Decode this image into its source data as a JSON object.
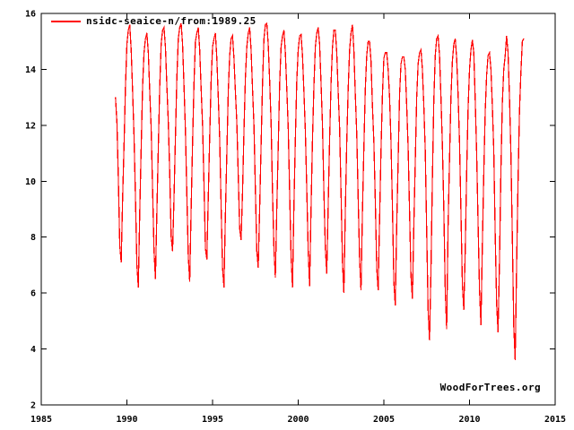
{
  "chart_data": {
    "type": "line",
    "title": "",
    "xlabel": "",
    "ylabel": "",
    "xlim": [
      1985,
      2015
    ],
    "ylim": [
      2,
      16
    ],
    "x_ticks": [
      1985,
      1990,
      1995,
      2000,
      2005,
      2010,
      2015
    ],
    "y_ticks": [
      2,
      4,
      6,
      8,
      10,
      12,
      14,
      16
    ],
    "grid": false,
    "legend_position": "top-left",
    "watermark": "WoodForTrees.org",
    "series": [
      {
        "name": "nsidc-seaice-n/from:1989.25",
        "color": "#ff0000",
        "start_time": 1989.3333,
        "step_years": 0.0833333,
        "values": [
          13.0,
          12.1,
          10.1,
          7.7,
          7.1,
          9.4,
          11.3,
          13.4,
          14.9,
          15.4,
          15.6,
          14.7,
          13.2,
          11.6,
          9.4,
          7.0,
          6.2,
          8.9,
          11.2,
          13.4,
          14.6,
          15.1,
          15.3,
          14.6,
          13.2,
          11.9,
          9.7,
          7.5,
          6.5,
          8.9,
          11.2,
          13.4,
          14.9,
          15.4,
          15.5,
          14.8,
          13.4,
          12.1,
          10.3,
          8.0,
          7.5,
          9.4,
          11.6,
          13.7,
          15.1,
          15.5,
          15.65,
          14.9,
          13.4,
          11.8,
          9.5,
          7.3,
          6.4,
          9.0,
          11.4,
          13.5,
          15.0,
          15.3,
          15.5,
          14.7,
          13.3,
          12.0,
          9.9,
          7.6,
          7.2,
          9.4,
          11.6,
          13.6,
          14.8,
          15.1,
          15.3,
          14.4,
          13.0,
          11.5,
          9.1,
          6.9,
          6.2,
          8.8,
          11.0,
          13.2,
          14.5,
          15.1,
          15.2,
          14.4,
          13.2,
          12.1,
          10.2,
          8.3,
          7.9,
          9.6,
          11.8,
          13.7,
          14.8,
          15.3,
          15.5,
          14.7,
          13.3,
          12.0,
          9.7,
          7.5,
          6.9,
          9.0,
          11.3,
          13.5,
          15.1,
          15.6,
          15.65,
          14.9,
          13.6,
          12.1,
          9.6,
          7.6,
          6.55,
          9.0,
          11.2,
          13.5,
          14.8,
          15.2,
          15.4,
          14.6,
          13.3,
          11.9,
          9.6,
          7.3,
          6.2,
          9.1,
          11.5,
          13.6,
          14.7,
          15.2,
          15.25,
          14.5,
          13.2,
          11.8,
          9.7,
          7.5,
          6.25,
          9.0,
          11.5,
          13.4,
          14.8,
          15.3,
          15.5,
          14.9,
          13.5,
          12.0,
          9.6,
          7.6,
          6.7,
          9.1,
          11.5,
          13.5,
          14.8,
          15.4,
          15.4,
          14.6,
          13.2,
          11.9,
          9.6,
          7.1,
          6.0,
          8.9,
          11.4,
          13.3,
          14.7,
          15.3,
          15.6,
          14.7,
          13.1,
          11.7,
          9.4,
          7.2,
          6.1,
          8.9,
          11.2,
          13.3,
          14.5,
          15.0,
          15.0,
          14.3,
          12.7,
          11.4,
          9.3,
          6.9,
          6.1,
          8.6,
          11.1,
          13.1,
          14.4,
          14.6,
          14.6,
          14.0,
          13.0,
          11.4,
          9.1,
          6.4,
          5.55,
          8.4,
          10.7,
          13.1,
          14.2,
          14.45,
          14.45,
          14.0,
          12.7,
          11.2,
          8.9,
          6.6,
          5.8,
          8.4,
          10.7,
          13.0,
          14.2,
          14.6,
          14.7,
          14.0,
          12.7,
          11.1,
          8.2,
          5.4,
          4.3,
          6.8,
          10.1,
          12.9,
          14.5,
          15.1,
          15.2,
          14.5,
          13.0,
          11.3,
          9.0,
          6.1,
          4.7,
          8.4,
          10.8,
          13.0,
          14.3,
          14.9,
          15.1,
          14.4,
          13.1,
          11.4,
          8.9,
          6.3,
          5.4,
          7.5,
          10.3,
          12.6,
          14.0,
          14.7,
          15.05,
          14.6,
          12.9,
          11.0,
          8.5,
          6.1,
          4.85,
          7.7,
          10.3,
          12.5,
          13.8,
          14.5,
          14.6,
          14.0,
          12.7,
          11.1,
          8.1,
          5.6,
          4.6,
          7.1,
          10.4,
          12.8,
          14.0,
          14.5,
          15.2,
          14.6,
          13.0,
          11.0,
          8.0,
          4.8,
          3.6,
          7.0,
          10.0,
          12.5,
          13.9,
          15.0,
          15.1
        ]
      }
    ]
  }
}
